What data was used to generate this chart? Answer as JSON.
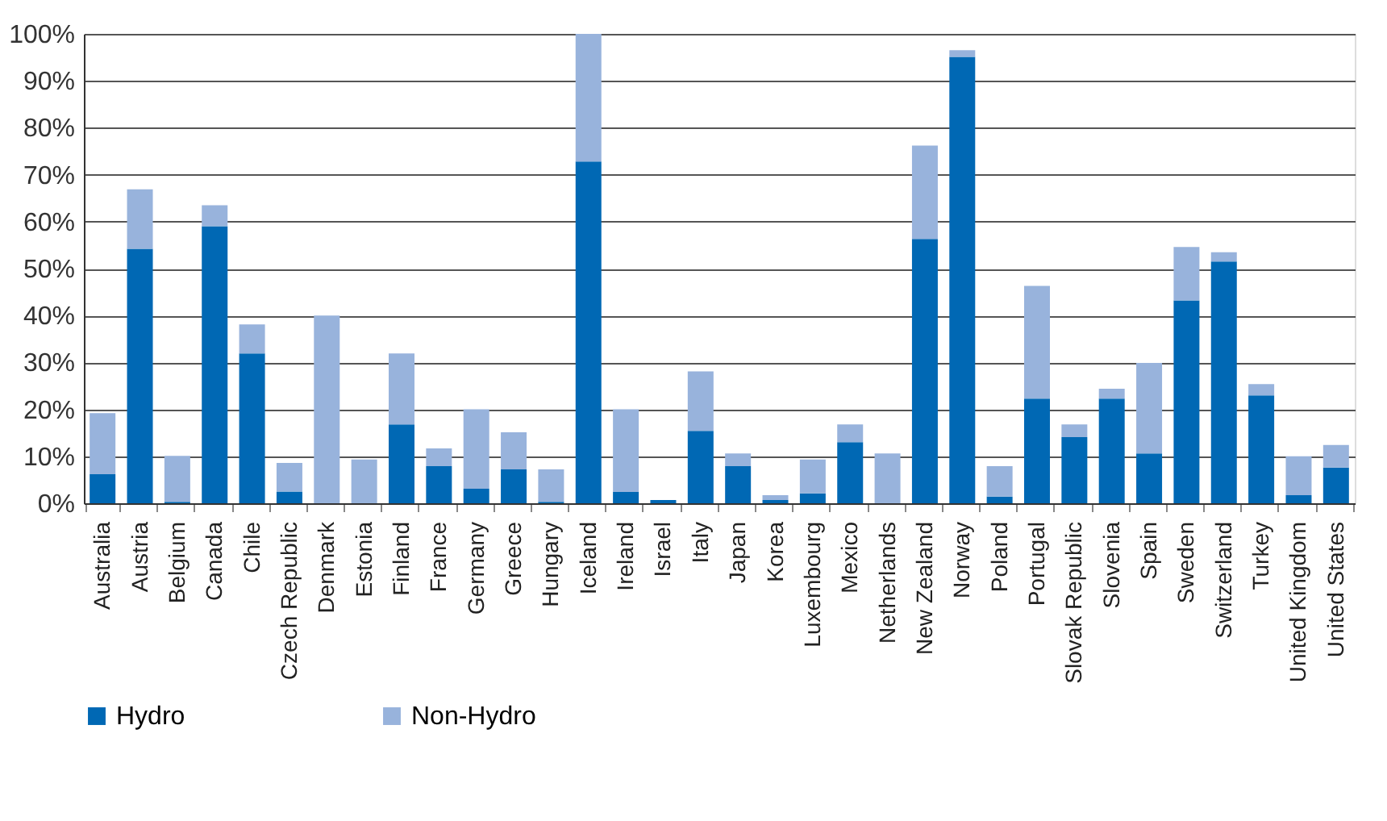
{
  "chart_data": {
    "type": "bar",
    "stacked": true,
    "categories": [
      "Australia",
      "Austria",
      "Belgium",
      "Canada",
      "Chile",
      "Czech Republic",
      "Denmark",
      "Estonia",
      "Finland",
      "France",
      "Germany",
      "Greece",
      "Hungary",
      "Iceland",
      "Ireland",
      "Israel",
      "Italy",
      "Japan",
      "Korea",
      "Luxembourg",
      "Mexico",
      "Netherlands",
      "New Zealand",
      "Norway",
      "Poland",
      "Portugal",
      "Slovak Republic",
      "Slovenia",
      "Spain",
      "Sweden",
      "Switzerland",
      "Turkey",
      "United Kingdom",
      "United States"
    ],
    "series": [
      {
        "name": "Hydro",
        "color": "#0068b4",
        "values": [
          6.2,
          54.2,
          0.3,
          59.0,
          31.9,
          2.5,
          0,
          0,
          16.8,
          7.9,
          3.1,
          7.2,
          0.3,
          72.8,
          2.4,
          0.7,
          15.4,
          7.9,
          0.7,
          2.1,
          13.0,
          0,
          56.3,
          95.1,
          1.4,
          22.3,
          14.1,
          22.3,
          10.6,
          43.2,
          51.5,
          23.0,
          1.7,
          7.6
        ]
      },
      {
        "name": "Non-Hydro",
        "color": "#98b3dc",
        "values": [
          13.0,
          12.7,
          9.8,
          4.5,
          6.2,
          6.1,
          40.0,
          9.3,
          15.1,
          3.8,
          16.9,
          7.9,
          6.9,
          27.2,
          17.6,
          0,
          12.7,
          2.7,
          1.0,
          7.2,
          3.8,
          10.6,
          19.9,
          1.4,
          6.5,
          24.0,
          2.7,
          2.1,
          19.3,
          11.4,
          2.0,
          2.4,
          8.3,
          4.8
        ]
      }
    ],
    "ylim": [
      0,
      100
    ],
    "yticks": [
      {
        "value": 0,
        "label": "0%"
      },
      {
        "value": 10,
        "label": "10%"
      },
      {
        "value": 20,
        "label": "20%"
      },
      {
        "value": 30,
        "label": "30%"
      },
      {
        "value": 40,
        "label": "40%"
      },
      {
        "value": 50,
        "label": "50%"
      },
      {
        "value": 60,
        "label": "60%"
      },
      {
        "value": 70,
        "label": "70%"
      },
      {
        "value": 80,
        "label": "80%"
      },
      {
        "value": 90,
        "label": "90%"
      },
      {
        "value": 100,
        "label": "100%"
      }
    ],
    "grid": "y",
    "legend": "bottom"
  }
}
